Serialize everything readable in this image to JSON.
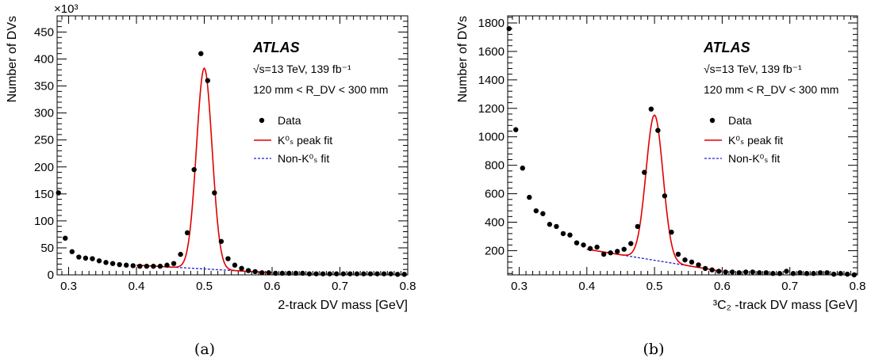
{
  "chart_data": [
    {
      "type": "scatter",
      "title": "",
      "scale_label": "×10³",
      "xlabel": "2-track DV mass [GeV]",
      "ylabel": "Number of DVs",
      "xlim": [
        0.283,
        0.8
      ],
      "ylim": [
        0,
        480
      ],
      "xticks": [
        "0.3",
        "0.4",
        "0.5",
        "0.6",
        "0.7",
        "0.8"
      ],
      "yticks": [
        "0",
        "50",
        "100",
        "150",
        "200",
        "250",
        "300",
        "350",
        "400",
        "450"
      ],
      "experiment": "ATLAS",
      "energy_text": "√s=13 TeV, 139 fb⁻¹",
      "region_text": "120 mm < R_DV < 300 mm",
      "legend_position": "top-right",
      "legend": [
        "Data",
        "K⁰ₛ peak fit",
        "Non-K⁰ₛ fit"
      ],
      "panel_label": "(a)",
      "series": [
        {
          "name": "Data",
          "x": [
            0.285,
            0.295,
            0.305,
            0.315,
            0.325,
            0.335,
            0.345,
            0.355,
            0.365,
            0.375,
            0.385,
            0.395,
            0.405,
            0.415,
            0.425,
            0.435,
            0.445,
            0.455,
            0.465,
            0.475,
            0.485,
            0.495,
            0.505,
            0.515,
            0.525,
            0.535,
            0.545,
            0.555,
            0.565,
            0.575,
            0.585,
            0.595,
            0.605,
            0.615,
            0.625,
            0.635,
            0.645,
            0.655,
            0.665,
            0.675,
            0.685,
            0.695,
            0.705,
            0.715,
            0.725,
            0.735,
            0.745,
            0.755,
            0.765,
            0.775,
            0.785,
            0.795
          ],
          "y": [
            152,
            68,
            43,
            33,
            31,
            30,
            26,
            23,
            21,
            19,
            18,
            17,
            16,
            16,
            16,
            16,
            18,
            21,
            38,
            78,
            195,
            410,
            360,
            152,
            62,
            30,
            18,
            12,
            8,
            6,
            4,
            4,
            3,
            3,
            3,
            3,
            3,
            2,
            2,
            2,
            2,
            2,
            2,
            2,
            2,
            2,
            2,
            2,
            2,
            2,
            1,
            1
          ]
        },
        {
          "name": "K⁰ₛ peak fit",
          "mean": 0.5,
          "sigma": 0.0115,
          "amplitude": 372,
          "x_range": [
            0.4,
            0.6
          ],
          "color": "#e00000"
        },
        {
          "name": "Non-K⁰ₛ fit",
          "x": [
            0.4,
            0.6
          ],
          "y": [
            18,
            4
          ],
          "color": "#2222cc"
        }
      ]
    },
    {
      "type": "scatter",
      "title": "",
      "xlabel": "³C₂ -track DV mass [GeV]",
      "ylabel": "Number of DVs",
      "xlim": [
        0.283,
        0.8
      ],
      "ylim": [
        30,
        1850
      ],
      "xticks": [
        "0.3",
        "0.4",
        "0.5",
        "0.6",
        "0.7",
        "0.8"
      ],
      "yticks": [
        "200",
        "400",
        "600",
        "800",
        "1000",
        "1200",
        "1400",
        "1600",
        "1800"
      ],
      "experiment": "ATLAS",
      "energy_text": "√s=13 TeV, 139 fb⁻¹",
      "region_text": "120 mm < R_DV < 300 mm",
      "legend_position": "top-right",
      "legend": [
        "Data",
        "K⁰ₛ peak fit",
        "Non-K⁰ₛ fit"
      ],
      "panel_label": "(b)",
      "series": [
        {
          "name": "Data",
          "x": [
            0.285,
            0.295,
            0.305,
            0.315,
            0.325,
            0.335,
            0.345,
            0.355,
            0.365,
            0.375,
            0.385,
            0.395,
            0.405,
            0.415,
            0.425,
            0.435,
            0.445,
            0.455,
            0.465,
            0.475,
            0.485,
            0.495,
            0.505,
            0.515,
            0.525,
            0.535,
            0.545,
            0.555,
            0.565,
            0.575,
            0.585,
            0.595,
            0.605,
            0.615,
            0.625,
            0.635,
            0.645,
            0.655,
            0.665,
            0.675,
            0.685,
            0.695,
            0.705,
            0.715,
            0.725,
            0.735,
            0.745,
            0.755,
            0.765,
            0.775,
            0.785,
            0.795
          ],
          "y": [
            1760,
            1050,
            780,
            575,
            480,
            460,
            385,
            370,
            320,
            310,
            255,
            240,
            215,
            225,
            175,
            185,
            195,
            210,
            250,
            370,
            750,
            1195,
            1045,
            585,
            330,
            175,
            135,
            120,
            100,
            75,
            65,
            55,
            50,
            50,
            45,
            50,
            50,
            45,
            45,
            40,
            40,
            55,
            40,
            45,
            40,
            40,
            45,
            45,
            35,
            40,
            35,
            30
          ]
        },
        {
          "name": "K⁰ₛ peak fit",
          "mean": 0.5,
          "sigma": 0.0125,
          "amplitude": 1020,
          "x_range": [
            0.4,
            0.6
          ],
          "color": "#e00000"
        },
        {
          "name": "Non-K⁰ₛ fit",
          "x": [
            0.4,
            0.6
          ],
          "y": [
            210,
            55
          ],
          "color": "#2222cc"
        }
      ]
    }
  ]
}
